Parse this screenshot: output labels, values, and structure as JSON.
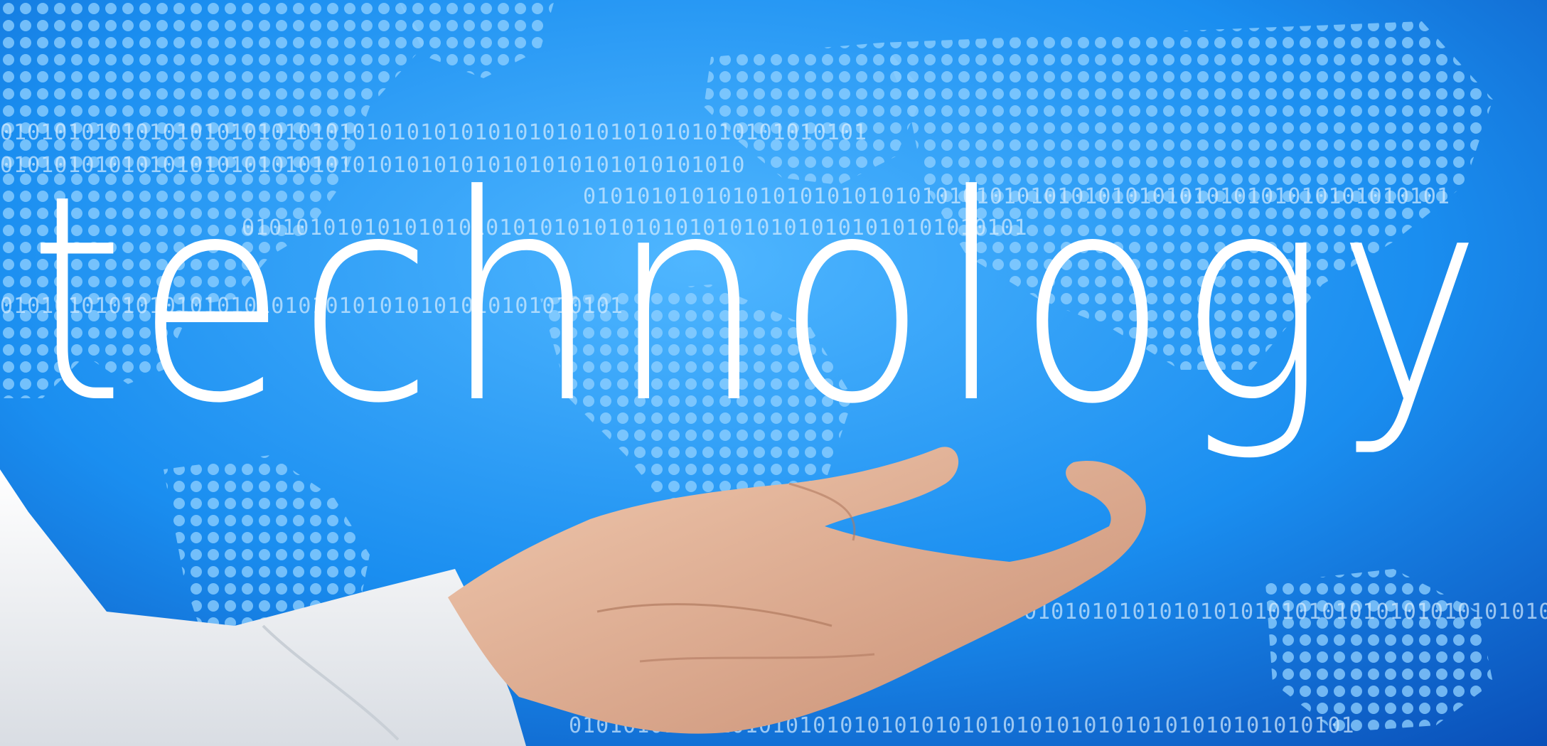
{
  "headline": "technology",
  "binary_strings": [
    "0101010101010101010101010101010101010101010101010101010101010101",
    "0101010101010101010101010101010101010101010101010101010",
    "0101010101010101010101010101010101010101010101010101010101010101",
    "0101010101010101010101010101010101010101010101010101010101",
    "0101010101010101010101010101010101010101010101",
    "01010101010101010101010101010101010101010101",
    "0101010101010101010101010101010101010101010101010101010101"
  ],
  "colors": {
    "background_dark": "#0a4fb8",
    "background_mid": "#1a8ef0",
    "background_light": "#4fb6ff",
    "dots": "#8fd0ff",
    "headline": "#ffffff",
    "skin": "#e6b59a",
    "sleeve": "#f4f6f8"
  }
}
